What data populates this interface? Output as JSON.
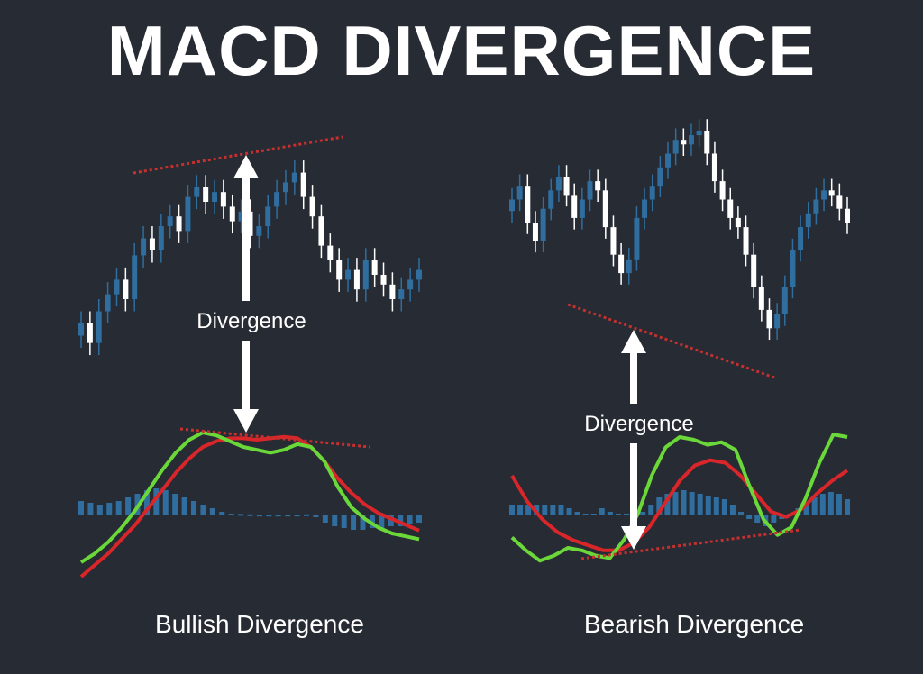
{
  "title": "MACD DIVERGENCE",
  "colors": {
    "background": "#272b33",
    "candle_blue": "#2f6e9f",
    "candle_white": "#ffffff",
    "macd_green": "#6bd83a",
    "signal_red": "#d9262a",
    "trendline_red": "#c8302f",
    "histogram_blue": "#2f6e9f",
    "text": "#ffffff"
  },
  "chart_data": [
    {
      "type": "candlestick+macd",
      "caption": "Bullish Divergence",
      "arrow_label": "Divergence",
      "price_trend": "higher highs (rising trendline on price)",
      "macd_trend": "lower highs (falling trendline on MACD)",
      "candles_close": [
        0.3,
        0.22,
        0.35,
        0.42,
        0.48,
        0.4,
        0.58,
        0.65,
        0.6,
        0.7,
        0.74,
        0.68,
        0.82,
        0.86,
        0.8,
        0.84,
        0.78,
        0.72,
        0.76,
        0.66,
        0.7,
        0.78,
        0.84,
        0.88,
        0.92,
        0.82,
        0.74,
        0.62,
        0.56,
        0.48,
        0.52,
        0.44,
        0.56,
        0.5,
        0.46,
        0.4,
        0.44,
        0.48,
        0.52
      ],
      "macd_line": [
        0.1,
        0.16,
        0.24,
        0.34,
        0.46,
        0.6,
        0.74,
        0.86,
        0.95,
        1.0,
        0.98,
        0.94,
        0.9,
        0.88,
        0.86,
        0.88,
        0.92,
        0.9,
        0.8,
        0.62,
        0.48,
        0.4,
        0.34,
        0.3,
        0.28,
        0.26
      ],
      "signal_line": [
        0.0,
        0.08,
        0.16,
        0.26,
        0.36,
        0.48,
        0.6,
        0.72,
        0.82,
        0.9,
        0.94,
        0.96,
        0.96,
        0.95,
        0.96,
        0.97,
        0.96,
        0.9,
        0.8,
        0.68,
        0.58,
        0.5,
        0.44,
        0.4,
        0.36,
        0.32
      ],
      "histogram": [
        0.4,
        0.35,
        0.3,
        0.35,
        0.4,
        0.5,
        0.6,
        0.7,
        0.75,
        0.7,
        0.6,
        0.5,
        0.4,
        0.3,
        0.2,
        0.1,
        0.05,
        0.04,
        0.03,
        0.02,
        0.02,
        0.02,
        0.02,
        0.02,
        0.03,
        -0.05,
        -0.2,
        -0.3,
        -0.35,
        -0.4,
        -0.4,
        -0.35,
        -0.35,
        -0.3,
        -0.3,
        -0.25,
        -0.2
      ]
    },
    {
      "type": "candlestick+macd",
      "caption": "Bearish Divergence",
      "arrow_label": "Divergence",
      "price_trend": "lower lows (falling trendline on price)",
      "macd_trend": "higher lows (rising trendline on MACD)",
      "candles_close": [
        0.7,
        0.76,
        0.6,
        0.52,
        0.66,
        0.74,
        0.8,
        0.72,
        0.62,
        0.7,
        0.78,
        0.74,
        0.58,
        0.46,
        0.38,
        0.44,
        0.62,
        0.7,
        0.76,
        0.84,
        0.9,
        0.96,
        0.94,
        0.98,
        1.0,
        0.9,
        0.78,
        0.7,
        0.62,
        0.58,
        0.46,
        0.32,
        0.22,
        0.14,
        0.2,
        0.32,
        0.48,
        0.58,
        0.64,
        0.7,
        0.74,
        0.72,
        0.66,
        0.6
      ],
      "macd_line": [
        0.22,
        0.12,
        0.04,
        0.08,
        0.14,
        0.12,
        0.08,
        0.06,
        0.2,
        0.4,
        0.7,
        0.92,
        1.0,
        0.98,
        0.94,
        0.96,
        0.9,
        0.62,
        0.36,
        0.24,
        0.3,
        0.52,
        0.8,
        1.02,
        1.0
      ],
      "signal_line": [
        0.7,
        0.5,
        0.36,
        0.26,
        0.2,
        0.16,
        0.12,
        0.12,
        0.18,
        0.3,
        0.48,
        0.66,
        0.78,
        0.82,
        0.8,
        0.7,
        0.56,
        0.42,
        0.38,
        0.44,
        0.56,
        0.66,
        0.74
      ],
      "histogram": [
        0.3,
        0.3,
        0.3,
        0.3,
        0.3,
        0.3,
        0.3,
        0.2,
        0.1,
        0.05,
        0.05,
        0.2,
        0.1,
        0.05,
        0.05,
        0.05,
        0.1,
        0.3,
        0.5,
        0.6,
        0.65,
        0.7,
        0.65,
        0.6,
        0.55,
        0.5,
        0.45,
        0.3,
        0.1,
        -0.1,
        -0.2,
        -0.3,
        -0.2,
        -0.1,
        0.05,
        0.2,
        0.35,
        0.5,
        0.6,
        0.65,
        0.6,
        0.45
      ]
    }
  ]
}
